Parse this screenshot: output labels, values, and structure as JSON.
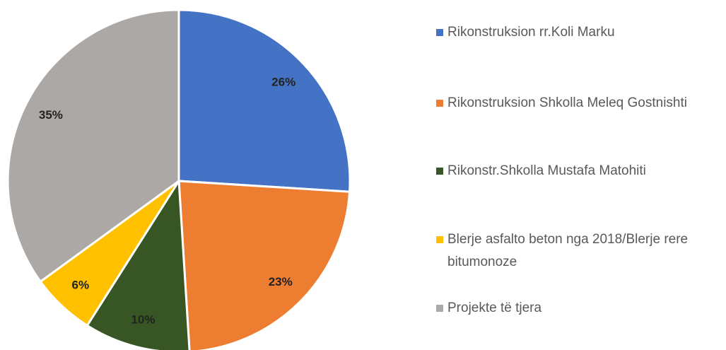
{
  "chart_data": {
    "type": "pie",
    "categories": [
      "Rikonstruksion rr.Koli Marku",
      "Rikonstruksion Shkolla Meleq Gostnishti",
      "Rikonstr.Shkolla Mustafa Matohiti",
      "Blerje asfalto beton nga 2018/Blerje rere bitumonoze",
      "Projekte të tjera"
    ],
    "values": [
      26,
      23,
      10,
      6,
      35
    ],
    "value_labels": [
      "26%",
      "23%",
      "10%",
      "6%",
      "35%"
    ],
    "colors": [
      "#4472c4",
      "#ed7d31",
      "#375623",
      "#ffc000",
      "#aba8a6"
    ],
    "legend": "right"
  }
}
